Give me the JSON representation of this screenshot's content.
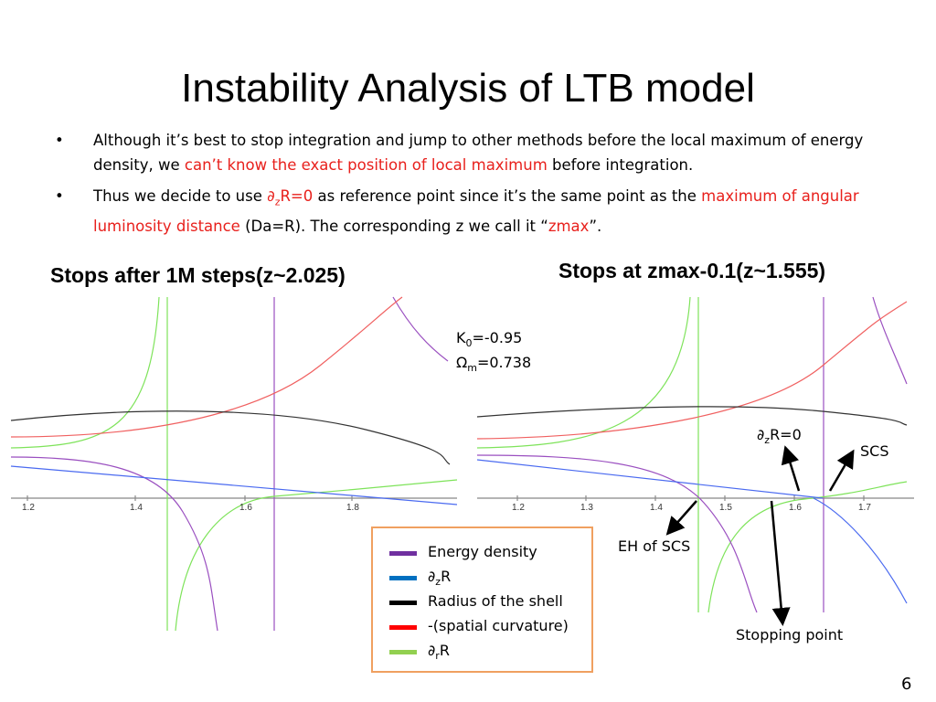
{
  "header": {
    "title": "Instability Analysis of LTB model"
  },
  "bullets": [
    {
      "marker": "•",
      "parts": [
        "Although it’s best to stop integration and jump to other methods before the local maximum of energy density, we ",
        "can’t know the exact position of local maximum",
        "  before integration."
      ]
    },
    {
      "marker": "•",
      "parts": [
        "Thus we decide to use ",
        "∂",
        "z",
        "R=0",
        " as reference point since it’s the same point as the ",
        "maximum of angular luminosity distance",
        " (Da=R). The corresponding z we call it “",
        "zmax",
        "”."
      ]
    }
  ],
  "panels": [
    {
      "title": "Stops after 1M steps(z~2.025)",
      "xticks": [
        "1.2",
        "1.4",
        "1.6",
        "1.8"
      ]
    },
    {
      "title": "Stops at zmax-0.1(z~1.555)",
      "xticks": [
        "1.2",
        "1.3",
        "1.4",
        "1.5",
        "1.6",
        "1.7"
      ]
    }
  ],
  "parameters": [
    [
      "K",
      "0",
      "=-0.95"
    ],
    [
      "Ω",
      "m",
      "=0.738"
    ]
  ],
  "annotations": {
    "dzr": [
      "∂",
      "z",
      "R=0"
    ],
    "scs": "SCS",
    "eh": "EH of SCS",
    "stop": "Stopping point"
  },
  "legend": [
    [
      "Energy density"
    ],
    [
      "∂",
      "z",
      "R"
    ],
    [
      "Radius of the shell"
    ],
    [
      "-(spatial curvature)"
    ],
    [
      "∂",
      "r",
      "R"
    ]
  ],
  "page_number": "6"
}
